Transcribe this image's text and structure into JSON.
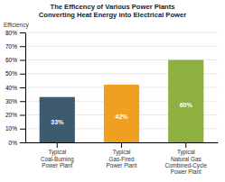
{
  "chart_data": {
    "type": "bar",
    "title": "The Efficency of Various Power Plants\nConverting Heat Energy into Electrical Power",
    "ylabel": "Efficiency",
    "categories": [
      "Typical\nCoal-Burning\nPower Plant",
      "Typical\nGas-Fired\nPower Plant",
      "Typical\nNatural Gas\nCombined-Cycle\nPower Plant"
    ],
    "values": [
      33,
      42,
      60
    ],
    "colors": [
      "#3d5a6e",
      "#f0a020",
      "#8db040"
    ],
    "data_labels": true,
    "value_labels": [
      "33%",
      "42%",
      "60%"
    ],
    "ylim": [
      0,
      80
    ],
    "yticks": [
      {
        "value": 0,
        "label": "0%"
      },
      {
        "value": 10,
        "label": "10%"
      },
      {
        "value": 20,
        "label": "20%"
      },
      {
        "value": 30,
        "label": "30%"
      },
      {
        "value": 40,
        "label": "40%"
      },
      {
        "value": 50,
        "label": "50%"
      },
      {
        "value": 60,
        "label": "60%"
      },
      {
        "value": 70,
        "label": "70%"
      },
      {
        "value": 80,
        "label": "80%"
      }
    ],
    "grid": true
  }
}
